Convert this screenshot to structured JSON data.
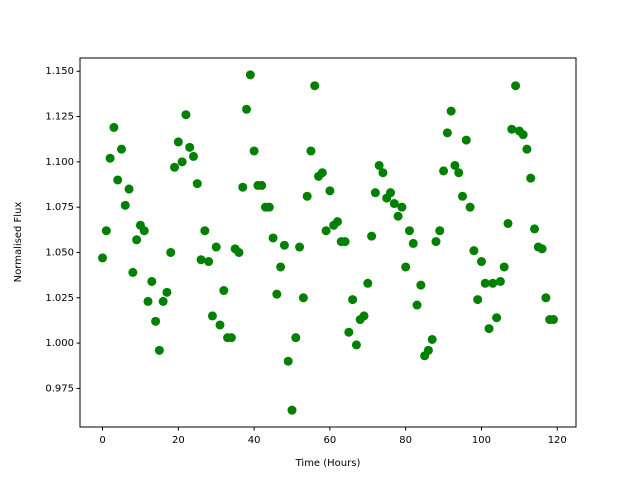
{
  "chart_data": {
    "type": "scatter",
    "xlabel": "Time (Hours)",
    "ylabel": "Normalised Flux",
    "color": "#008000",
    "x": [
      0,
      1,
      2,
      3,
      4,
      5,
      6,
      7,
      8,
      9,
      10,
      11,
      12,
      13,
      14,
      15,
      16,
      17,
      18,
      19,
      20,
      21,
      22,
      23,
      24,
      25,
      26,
      27,
      28,
      29,
      30,
      31,
      32,
      33,
      34,
      35,
      36,
      37,
      38,
      39,
      40,
      41,
      42,
      43,
      44,
      45,
      46,
      47,
      48,
      49,
      50,
      51,
      52,
      53,
      54,
      55,
      56,
      57,
      58,
      59,
      60,
      61,
      62,
      63,
      64,
      65,
      66,
      67,
      68,
      69,
      70,
      71,
      72,
      73,
      74,
      75,
      76,
      77,
      78,
      79,
      80,
      81,
      82,
      83,
      84,
      85,
      86,
      87,
      88,
      89,
      90,
      91,
      92,
      93,
      94,
      95,
      96,
      97,
      98,
      99,
      100,
      101,
      102,
      103,
      104,
      105,
      106,
      107,
      108,
      109,
      110,
      111,
      112,
      113,
      114,
      115,
      116,
      117,
      118,
      119
    ],
    "y": [
      1.047,
      1.062,
      1.102,
      1.119,
      1.09,
      1.107,
      1.076,
      1.085,
      1.039,
      1.057,
      1.065,
      1.062,
      1.023,
      1.034,
      1.012,
      0.996,
      1.023,
      1.028,
      1.05,
      1.097,
      1.111,
      1.1,
      1.126,
      1.108,
      1.103,
      1.088,
      1.046,
      1.062,
      1.045,
      1.015,
      1.053,
      1.01,
      1.029,
      1.003,
      1.003,
      1.052,
      1.05,
      1.086,
      1.129,
      1.148,
      1.106,
      1.087,
      1.087,
      1.075,
      1.075,
      1.058,
      1.027,
      1.042,
      1.054,
      0.99,
      0.963,
      1.003,
      1.053,
      1.025,
      1.081,
      1.106,
      1.142,
      1.092,
      1.094,
      1.062,
      1.084,
      1.065,
      1.067,
      1.056,
      1.056,
      1.006,
      1.024,
      0.999,
      1.013,
      1.015,
      1.033,
      1.059,
      1.083,
      1.098,
      1.094,
      1.08,
      1.083,
      1.077,
      1.07,
      1.075,
      1.042,
      1.062,
      1.055,
      1.021,
      1.032,
      0.993,
      0.996,
      1.002,
      1.056,
      1.062,
      1.095,
      1.116,
      1.128,
      1.098,
      1.094,
      1.081,
      1.112,
      1.075,
      1.051,
      1.024,
      1.045,
      1.033,
      1.008,
      1.033,
      1.014,
      1.034,
      1.042,
      1.066,
      1.118,
      1.142,
      1.117,
      1.115,
      1.107,
      1.091,
      1.063,
      1.053,
      1.052,
      1.025,
      1.013,
      1.013
    ],
    "xlim": [
      -5.95,
      124.95
    ],
    "xticks": [
      0,
      20,
      40,
      60,
      80,
      100,
      120
    ],
    "ylim": [
      0.9537,
      1.1573
    ],
    "yticks": [
      0.975,
      {
        "value": 1.0,
        "label": "1.000"
      },
      1.025,
      {
        "value": 1.05,
        "label": "1.050"
      },
      1.075,
      {
        "value": 1.1,
        "label": "1.100"
      },
      1.125,
      {
        "value": 1.15,
        "label": "1.150"
      }
    ]
  }
}
